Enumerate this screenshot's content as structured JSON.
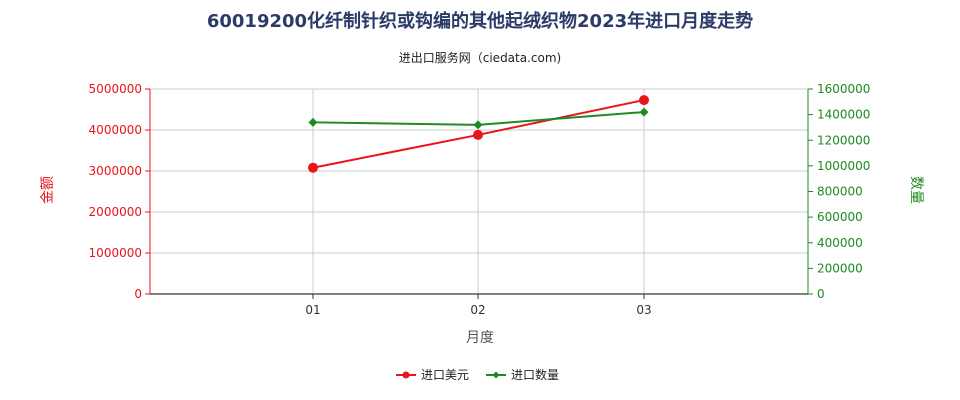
{
  "chart_data": {
    "type": "line",
    "title": "60019200化纤制针织或钩编的其他起绒织物2023年进口月度走势",
    "subtitle": "进出口服务网（ciedata.com)",
    "xlabel": "月度",
    "ylabel_left": "金额",
    "ylabel_right": "数量",
    "categories": [
      "01",
      "02",
      "03"
    ],
    "ylim_left": [
      0,
      5000000
    ],
    "ylim_right": [
      0,
      1600000
    ],
    "yticks_left": [
      "0",
      "1000000",
      "2000000",
      "3000000",
      "4000000",
      "5000000"
    ],
    "yticks_right": [
      "0",
      "200000",
      "400000",
      "600000",
      "800000",
      "1000000",
      "1200000",
      "1400000",
      "1600000"
    ],
    "grid": true,
    "legend_position": "bottom-center",
    "series": [
      {
        "name": "进口美元",
        "axis": "left",
        "color": "#e8151b",
        "marker": "circle",
        "values": [
          3080000,
          3880000,
          4730000
        ]
      },
      {
        "name": "进口数量",
        "axis": "right",
        "color": "#1f8a1f",
        "marker": "diamond",
        "values": [
          1340000,
          1320000,
          1420000
        ]
      }
    ]
  }
}
